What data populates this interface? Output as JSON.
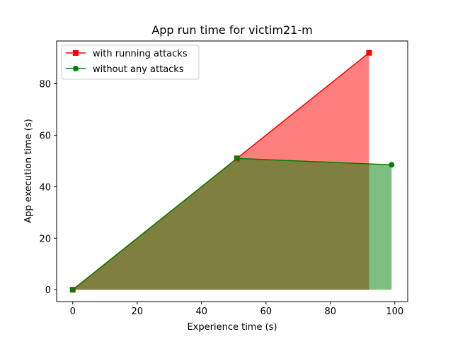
{
  "chart_data": {
    "type": "area",
    "title": "App run time for victim21-m",
    "xlabel": "Experience time (s)",
    "ylabel": "App execution time  (s)",
    "xlim": [
      -5,
      104
    ],
    "ylim": [
      -4.6,
      96.6
    ],
    "xticks": [
      0,
      20,
      40,
      60,
      80,
      100
    ],
    "yticks": [
      0,
      20,
      40,
      60,
      80
    ],
    "grid": false,
    "legend_position": "top-left",
    "series": [
      {
        "name": "with running attacks",
        "color": "#ff0000",
        "fill_color": "#ff0000",
        "marker": "square",
        "x": [
          0,
          51,
          92
        ],
        "y": [
          0,
          51,
          92
        ]
      },
      {
        "name": "without any attacks",
        "color": "#008000",
        "fill_color": "#008000",
        "marker": "circle",
        "x": [
          0,
          51,
          99
        ],
        "y": [
          0,
          51,
          48.5
        ]
      }
    ]
  }
}
